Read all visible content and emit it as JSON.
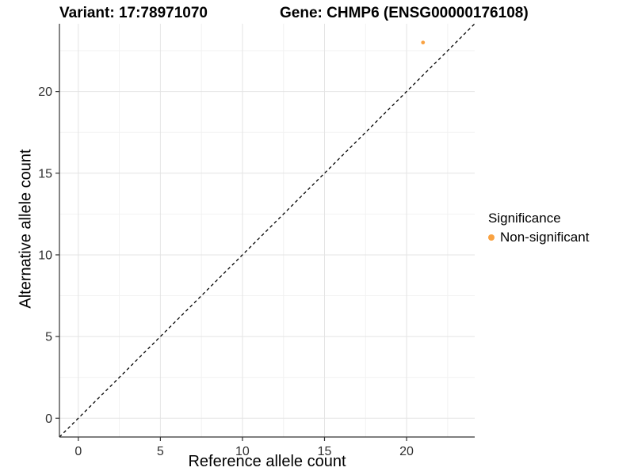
{
  "header": {
    "variant_title": "Variant: 17:78971070",
    "gene_title": "Gene: CHMP6 (ENSG00000176108)"
  },
  "legend": {
    "title": "Significance",
    "items": [
      {
        "label": "Non-significant",
        "color": "#F9A242"
      }
    ]
  },
  "chart_data": {
    "type": "scatter",
    "title_left": "Variant: 17:78971070",
    "title_right": "Gene: CHMP6 (ENSG00000176108)",
    "xlabel": "Reference allele count",
    "ylabel": "Alternative allele count",
    "xlim": [
      -1.15,
      24.15
    ],
    "ylim": [
      -1.15,
      24.15
    ],
    "x_breaks": [
      0,
      5,
      10,
      15,
      20
    ],
    "y_breaks": [
      0,
      5,
      10,
      15,
      20
    ],
    "x_minor_breaks": [
      2.5,
      7.5,
      12.5,
      17.5,
      22.5
    ],
    "y_minor_breaks": [
      2.5,
      7.5,
      12.5,
      17.5,
      22.5
    ],
    "grid": true,
    "legend_title": "Significance",
    "legend_position": "right",
    "series": [
      {
        "name": "Non-significant",
        "color": "#F9A242",
        "points": [
          {
            "x": 21,
            "y": 23
          }
        ]
      }
    ],
    "reference_line": {
      "type": "identity",
      "equation": "y = x",
      "style": "dashed",
      "color": "#000000"
    },
    "colors": {
      "major_grid": "#e4e4e4",
      "minor_grid": "#f2f2f2",
      "axis_line": "#333333",
      "tick_label": "#303030",
      "panel_background": "#ffffff"
    }
  }
}
